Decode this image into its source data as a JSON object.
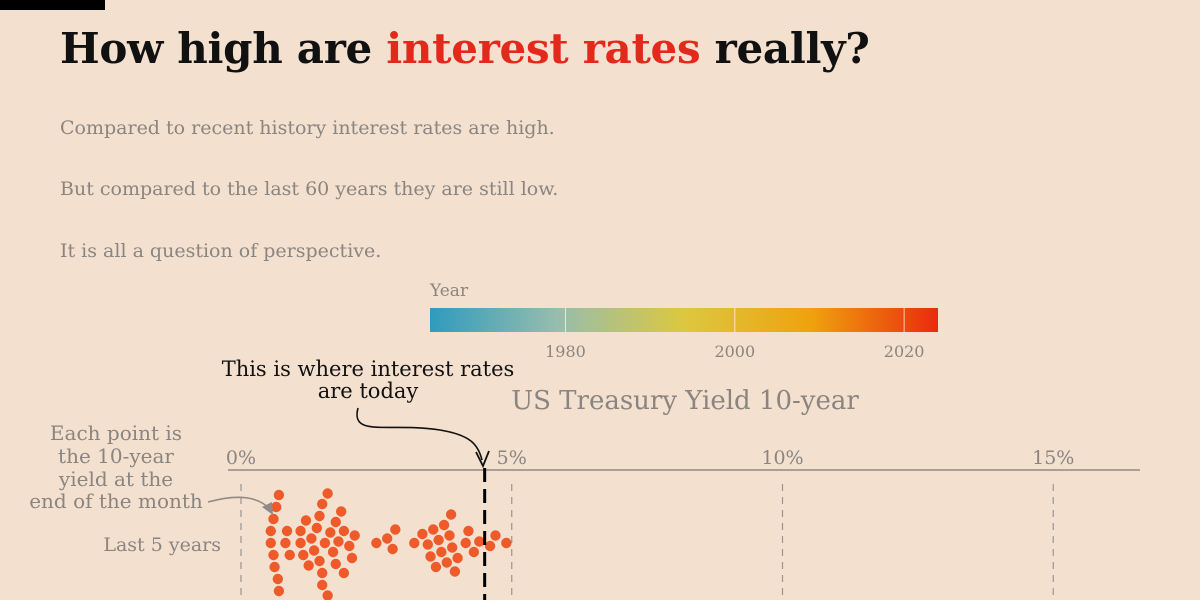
{
  "header": {
    "title_before": "How high are ",
    "title_highlight": "interest rates",
    "title_after": " really?",
    "subtitle_lines": [
      "Compared to recent history interest rates are high.",
      "But compared to the last 60 years they are still low.",
      "It is all a question of perspective."
    ]
  },
  "colors": {
    "background": "#f3e0cf",
    "highlight": "#e3281c",
    "point": "#ee5a2a",
    "text_muted": "#8a8580",
    "gradient": [
      "#2f9bbd",
      "#97bdad",
      "#dcc840",
      "#efa20e",
      "#ea2b0e"
    ]
  },
  "chart_data": {
    "type": "scatter",
    "title": "US Treasury Yield 10-year",
    "x_axis": {
      "ticks": [
        0,
        5,
        10,
        15
      ],
      "tick_labels": [
        "0%",
        "5%",
        "10%",
        "15%"
      ],
      "range": [
        0,
        16.5
      ]
    },
    "color_scale": {
      "label": "Year",
      "ticks": [
        1980,
        2000,
        2020
      ],
      "tick_labels": [
        "1980",
        "2000",
        "2020"
      ],
      "range": [
        1964,
        2024
      ]
    },
    "rows": [
      {
        "label": "Last 5 years",
        "values": [
          0.55,
          0.55,
          0.6,
          0.6,
          0.62,
          0.65,
          0.68,
          0.7,
          0.7,
          0.82,
          0.85,
          0.9,
          1.1,
          1.1,
          1.15,
          1.2,
          1.25,
          1.3,
          1.35,
          1.4,
          1.45,
          1.45,
          1.5,
          1.5,
          1.5,
          1.55,
          1.6,
          1.6,
          1.65,
          1.7,
          1.75,
          1.75,
          1.8,
          1.85,
          1.9,
          1.9,
          2.0,
          2.05,
          2.1,
          2.5,
          2.7,
          2.8,
          2.85,
          3.2,
          3.35,
          3.45,
          3.5,
          3.55,
          3.6,
          3.65,
          3.7,
          3.75,
          3.8,
          3.85,
          3.88,
          3.9,
          3.95,
          4.0,
          4.15,
          4.2,
          4.3,
          4.4,
          4.6,
          4.7,
          4.9
        ]
      }
    ],
    "current_value": 4.5,
    "annotations": {
      "today": "This is where interest rates are today",
      "point_explainer": [
        "Each point is",
        "the 10-year",
        "yield at the",
        "end of the month"
      ]
    }
  }
}
